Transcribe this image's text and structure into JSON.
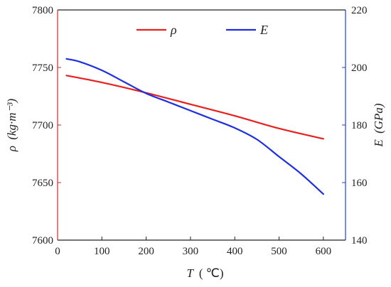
{
  "chart_data": {
    "type": "line",
    "x_axis": {
      "label_var": "T",
      "label_unit": "( ℃)",
      "ticks": [
        0,
        100,
        200,
        300,
        400,
        500,
        600
      ],
      "range": [
        0,
        650
      ]
    },
    "y_axis_left": {
      "label_var": "ρ",
      "label_unit": "(kg·m⁻³)",
      "ticks": [
        7600,
        7650,
        7700,
        7750,
        7800
      ],
      "range": [
        7600,
        7800
      ],
      "color": "#d62728"
    },
    "y_axis_right": {
      "label_var": "E",
      "label_unit": "(GPa)",
      "ticks": [
        140,
        160,
        180,
        200,
        220
      ],
      "range": [
        140,
        220
      ],
      "color": "#1f3fd6"
    },
    "series": [
      {
        "name": "ρ",
        "axis": "left",
        "color": "#e8201e",
        "x": [
          20,
          100,
          200,
          300,
          400,
          500,
          600
        ],
        "y": [
          7743,
          7737,
          7728,
          7718,
          7708,
          7697,
          7688
        ]
      },
      {
        "name": "E",
        "axis": "right",
        "color": "#1f2fe0",
        "x": [
          20,
          50,
          100,
          150,
          200,
          250,
          300,
          350,
          400,
          450,
          500,
          550,
          600
        ],
        "y": [
          203,
          202,
          199,
          195,
          191,
          188,
          185,
          182,
          179,
          175,
          169,
          163,
          156
        ]
      }
    ],
    "legend": {
      "position": "top-center",
      "entries": [
        "ρ",
        "E"
      ]
    },
    "grid": false
  }
}
